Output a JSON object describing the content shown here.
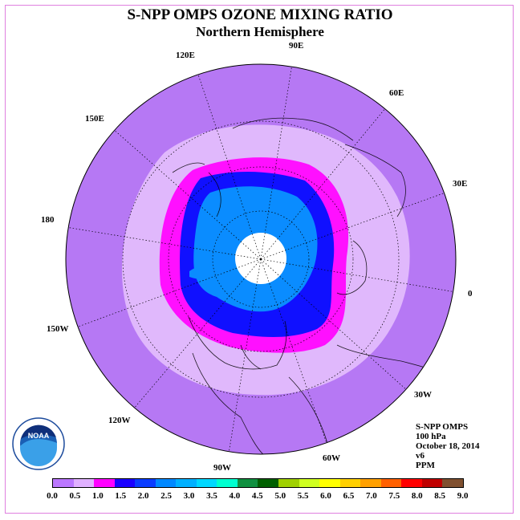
{
  "title": "S-NPP OMPS OZONE MIXING RATIO",
  "subtitle": "Northern Hemisphere",
  "longitude_labels": [
    {
      "key": "lon-120e",
      "text": "120E"
    },
    {
      "key": "lon-90e",
      "text": "90E"
    },
    {
      "key": "lon-60e",
      "text": "60E"
    },
    {
      "key": "lon-150e",
      "text": "150E"
    },
    {
      "key": "lon-30e",
      "text": "30E"
    },
    {
      "key": "lon-180",
      "text": "180"
    },
    {
      "key": "lon-0",
      "text": "0"
    },
    {
      "key": "lon-150w",
      "text": "150W"
    },
    {
      "key": "lon-30w",
      "text": "30W"
    },
    {
      "key": "lon-120w",
      "text": "120W"
    },
    {
      "key": "lon-60w",
      "text": "60W"
    },
    {
      "key": "lon-90w",
      "text": "90W"
    }
  ],
  "info": {
    "instrument": "S-NPP OMPS",
    "level": "100 hPa",
    "date": "October 18, 2014",
    "version": "v6",
    "units": "PPM"
  },
  "logo_text": "NOAA",
  "colorbar": {
    "colors": [
      "#bb77ff",
      "#e0b0ff",
      "#ff00ff",
      "#1a00ff",
      "#0a3cff",
      "#0088ff",
      "#00b0ff",
      "#00d8ff",
      "#00ffd0",
      "#109040",
      "#006000",
      "#a0d000",
      "#d0ff20",
      "#ffff00",
      "#ffd000",
      "#ffa000",
      "#ff6000",
      "#ff0000",
      "#c00000",
      "#805030"
    ],
    "ticks": [
      "0.0",
      "0.5",
      "1.0",
      "1.5",
      "2.0",
      "2.5",
      "3.0",
      "3.5",
      "4.0",
      "4.5",
      "5.0",
      "5.5",
      "6.0",
      "6.5",
      "7.0",
      "7.5",
      "8.0",
      "8.5",
      "9.0"
    ]
  },
  "map_colors": {
    "outer": "#b678f4",
    "light": "#e0b8fc",
    "magenta": "#ff10ff",
    "blue": "#1010ff",
    "mid_blue": "#0a8cff",
    "pole": "#ffffff"
  }
}
